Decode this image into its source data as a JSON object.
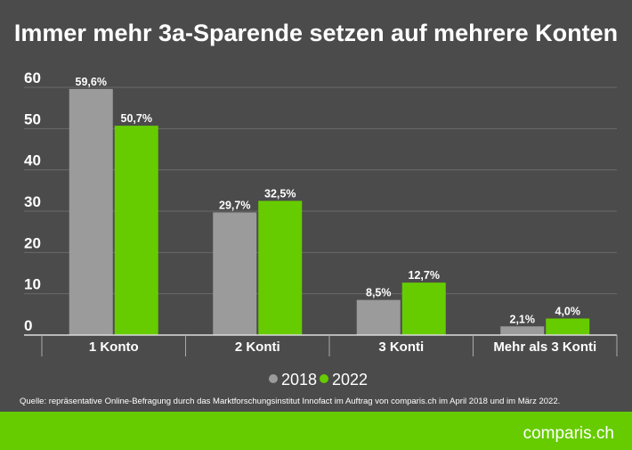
{
  "chart_data": {
    "type": "bar",
    "title": "Immer mehr 3a-Sparende setzen auf mehrere Konten",
    "categories": [
      "1 Konto",
      "2 Konti",
      "3 Konti",
      "Mehr als 3 Konti"
    ],
    "series": [
      {
        "name": "2018",
        "values": [
          59.6,
          29.7,
          8.5,
          2.1
        ],
        "labels": [
          "59,6%",
          "29,7%",
          "8,5%",
          "2,1%"
        ],
        "color": "#9b9b9b"
      },
      {
        "name": "2022",
        "values": [
          50.7,
          32.5,
          12.7,
          4.0
        ],
        "labels": [
          "50,7%",
          "32,5%",
          "12,7%",
          "4,0%"
        ],
        "color": "#66cc00"
      }
    ],
    "yticks": [
      "0",
      "10",
      "20",
      "30",
      "40",
      "50",
      "60"
    ],
    "ylim": [
      0,
      60
    ],
    "grid": true,
    "legend": "bottom-center",
    "xlabel": "",
    "ylabel": ""
  },
  "source": "Quelle: repräsentative Online-Befragung durch das Marktforschungsinstitut Innofact im Auftrag von comparis.ch im April 2018 und im März 2022.",
  "brand": {
    "logo_text": "comparis.ch",
    "color": "#66cc00"
  },
  "colors": {
    "background": "#4b4b4b",
    "gridline": "#6a6a6a"
  }
}
